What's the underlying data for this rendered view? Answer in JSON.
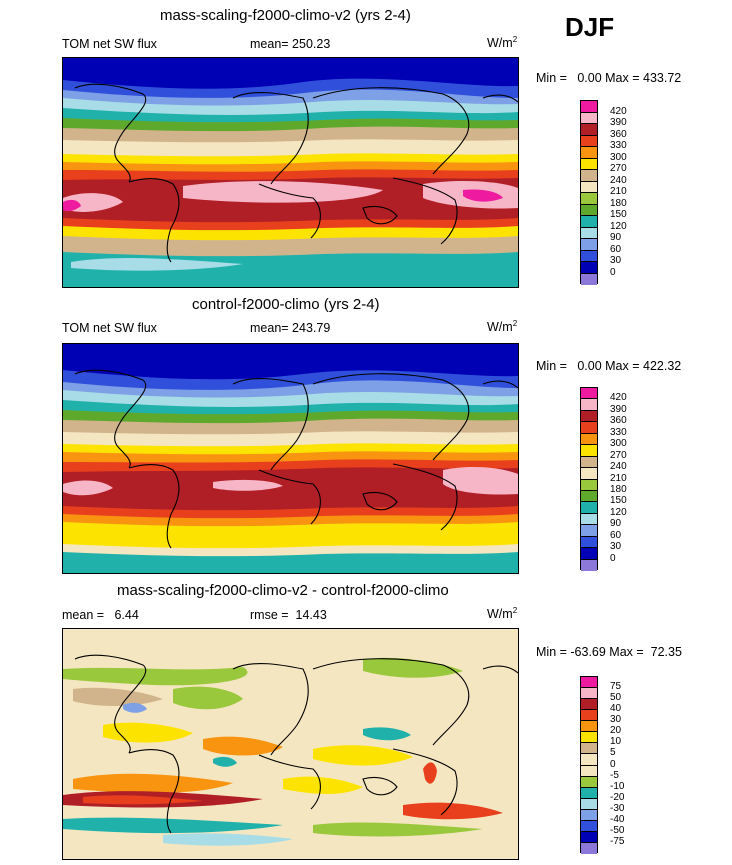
{
  "season": "DJF",
  "panels": [
    {
      "title": "mass-scaling-f2000-climo-v2 (yrs 2-4)",
      "left_label": "TOM net SW flux",
      "center_label": "mean= 250.23",
      "units_base": "W/m",
      "units_exp": "2",
      "minmax": "Min =   0.00 Max = 433.72"
    },
    {
      "title": "control-f2000-climo (yrs 2-4)",
      "left_label": "TOM net SW flux",
      "center_label": "mean= 243.79",
      "units_base": "W/m",
      "units_exp": "2",
      "minmax": "Min =   0.00 Max = 422.32"
    },
    {
      "title": "mass-scaling-f2000-climo-v2 - control-f2000-climo",
      "left_label": "mean =   6.44",
      "center_label": "rmse =  14.43",
      "units_base": "W/m",
      "units_exp": "2",
      "minmax": "Min = -63.69 Max =  72.35"
    }
  ],
  "chart_data": [
    {
      "type": "heatmap",
      "title": "mass-scaling-f2000-climo-v2 (yrs 2-4)",
      "variable": "TOM net SW flux",
      "units": "W/m2",
      "mean": 250.23,
      "min": 0.0,
      "max": 433.72,
      "levels": [
        "420",
        "390",
        "360",
        "330",
        "300",
        "270",
        "240",
        "210",
        "180",
        "150",
        "120",
        "90",
        "60",
        "30",
        "0"
      ],
      "colors": [
        "#ee1aa0",
        "#f7b6c8",
        "#b11f26",
        "#e8401c",
        "#f99410",
        "#fde400",
        "#d2b48c",
        "#f5e6c2",
        "#9ac83c",
        "#5ea82c",
        "#20b2aa",
        "#a8dce6",
        "#7ea0e6",
        "#3050dc",
        "#0000b4",
        "#8c78d8"
      ]
    },
    {
      "type": "heatmap",
      "title": "control-f2000-climo (yrs 2-4)",
      "variable": "TOM net SW flux",
      "units": "W/m2",
      "mean": 243.79,
      "min": 0.0,
      "max": 422.32,
      "levels": [
        "420",
        "390",
        "360",
        "330",
        "300",
        "270",
        "240",
        "210",
        "180",
        "150",
        "120",
        "90",
        "60",
        "30",
        "0"
      ],
      "colors": [
        "#ee1aa0",
        "#f7b6c8",
        "#b11f26",
        "#e8401c",
        "#f99410",
        "#fde400",
        "#d2b48c",
        "#f5e6c2",
        "#9ac83c",
        "#5ea82c",
        "#20b2aa",
        "#a8dce6",
        "#7ea0e6",
        "#3050dc",
        "#0000b4",
        "#8c78d8"
      ]
    },
    {
      "type": "heatmap",
      "title": "mass-scaling-f2000-climo-v2 - control-f2000-climo",
      "units": "W/m2",
      "mean": 6.44,
      "rmse": 14.43,
      "min": -63.69,
      "max": 72.35,
      "levels": [
        "75",
        "50",
        "40",
        "30",
        "20",
        "10",
        "5",
        "0",
        "-5",
        "-10",
        "-20",
        "-30",
        "-40",
        "-50",
        "-75"
      ],
      "colors": [
        "#ee1aa0",
        "#f7b6c8",
        "#b11f26",
        "#e8401c",
        "#f99410",
        "#fde400",
        "#d2b48c",
        "#f5e6c2",
        "#f5e6c2",
        "#9ac83c",
        "#20b2aa",
        "#a8dce6",
        "#7ea0e6",
        "#3050dc",
        "#0000b4",
        "#8c78d8"
      ]
    }
  ]
}
